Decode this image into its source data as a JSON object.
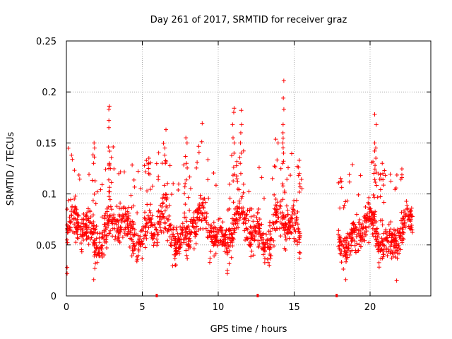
{
  "chart_data": {
    "type": "scatter",
    "title": "Day 261 of 2017, SRMTID for receiver graz",
    "xlabel": "GPS time / hours",
    "ylabel": "SRMTID / TECUs",
    "xlim": [
      0,
      24
    ],
    "ylim": [
      0,
      0.25
    ],
    "grid": true,
    "marker": "+",
    "series_color": "#ff0000",
    "x_ticks": [
      {
        "value": 0,
        "label": "0"
      },
      {
        "value": 5,
        "label": "5"
      },
      {
        "value": 10,
        "label": "10"
      },
      {
        "value": 15,
        "label": "15"
      },
      {
        "value": 20,
        "label": "20"
      }
    ],
    "y_ticks": [
      {
        "value": 0,
        "label": "0"
      },
      {
        "value": 0.05,
        "label": "0.05"
      },
      {
        "value": 0.1,
        "label": "0.1"
      },
      {
        "value": 0.15,
        "label": "0.15"
      },
      {
        "value": 0.2,
        "label": "0.2"
      },
      {
        "value": 0.25,
        "label": "0.25"
      }
    ],
    "gap_markers_x": [
      5.95,
      12.6,
      17.8
    ],
    "point_segments": [
      {
        "x_start": 0.0,
        "x_end": 15.4,
        "y_base": 0.065,
        "y_spread": 0.025,
        "count": 1250
      },
      {
        "x_start": 17.9,
        "x_end": 22.8,
        "y_base": 0.06,
        "y_spread": 0.022,
        "count": 420
      }
    ],
    "spikes": [
      {
        "x": 1.85,
        "values": [
          0.15,
          0.145,
          0.13
        ]
      },
      {
        "x": 2.8,
        "values": [
          0.186,
          0.183,
          0.172,
          0.165,
          0.146,
          0.142,
          0.13,
          0.125
        ]
      },
      {
        "x": 5.4,
        "values": [
          0.12,
          0.13,
          0.125,
          0.135
        ]
      },
      {
        "x": 6.5,
        "values": [
          0.145,
          0.163,
          0.138,
          0.13
        ]
      },
      {
        "x": 7.9,
        "values": [
          0.155,
          0.15,
          0.13
        ]
      },
      {
        "x": 11.0,
        "values": [
          0.184,
          0.18,
          0.168,
          0.155,
          0.15,
          0.14
        ]
      },
      {
        "x": 11.5,
        "values": [
          0.182,
          0.168,
          0.16,
          0.15,
          0.14,
          0.13,
          0.12
        ]
      },
      {
        "x": 14.3,
        "values": [
          0.211,
          0.194,
          0.183,
          0.168,
          0.16,
          0.15,
          0.14,
          0.13
        ]
      },
      {
        "x": 15.35,
        "values": [
          0.133,
          0.12,
          0.11
        ]
      },
      {
        "x": 20.35,
        "values": [
          0.178,
          0.168,
          0.15,
          0.145,
          0.135,
          0.128
        ]
      },
      {
        "x": 20.8,
        "values": [
          0.13,
          0.12
        ]
      }
    ],
    "lows": [
      {
        "x": 0.05,
        "values": [
          0.022,
          0.028
        ]
      },
      {
        "x": 1.8,
        "values": [
          0.016
        ]
      },
      {
        "x": 10.6,
        "values": [
          0.025,
          0.022
        ]
      },
      {
        "x": 18.4,
        "values": [
          0.016
        ]
      },
      {
        "x": 21.75,
        "values": [
          0.015
        ]
      }
    ]
  }
}
